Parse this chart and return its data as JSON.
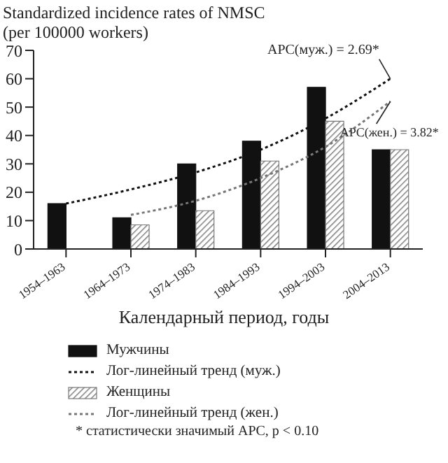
{
  "chart_data": {
    "type": "bar",
    "ylabel": "Standardized incidence rates of NMSC (per 100000 workers)",
    "xlabel": "Календарный период, годы",
    "categories": [
      "1954–1963",
      "1964–1973",
      "1974–1983",
      "1984–1993",
      "1994–2003",
      "2004–2013"
    ],
    "series": [
      {
        "name": "Мужчины",
        "color": "#111111",
        "values": [
          16,
          11,
          30,
          38,
          57,
          35
        ]
      },
      {
        "name": "Лог-линейный тренд (муж.)",
        "type": "line",
        "color": "#111111",
        "line_style": "dotted",
        "values": [
          16,
          21,
          27,
          35,
          46,
          60
        ]
      },
      {
        "name": "Женщины",
        "color": "#777777",
        "values": [
          null,
          8.5,
          13.5,
          31,
          45,
          35
        ]
      },
      {
        "name": "Лог-линейный тренд (жен.)",
        "type": "line",
        "color": "#777777",
        "line_style": "dotted",
        "values": [
          null,
          12,
          17,
          25,
          36,
          52
        ]
      }
    ],
    "ylim": [
      0,
      70
    ],
    "yticks": [
      0,
      10,
      20,
      30,
      40,
      50,
      60,
      70
    ],
    "grid": false,
    "legend": "bottom",
    "marker": "none",
    "annotations": [
      {
        "text": "APC(муж.) = 2.69*",
        "x": "2004–2013",
        "y": 60
      },
      {
        "text": "APC(жен.) = 3.82*",
        "x": "2004–2013",
        "y": 52
      },
      "* статистически значимый APC, p < 0.10"
    ]
  }
}
